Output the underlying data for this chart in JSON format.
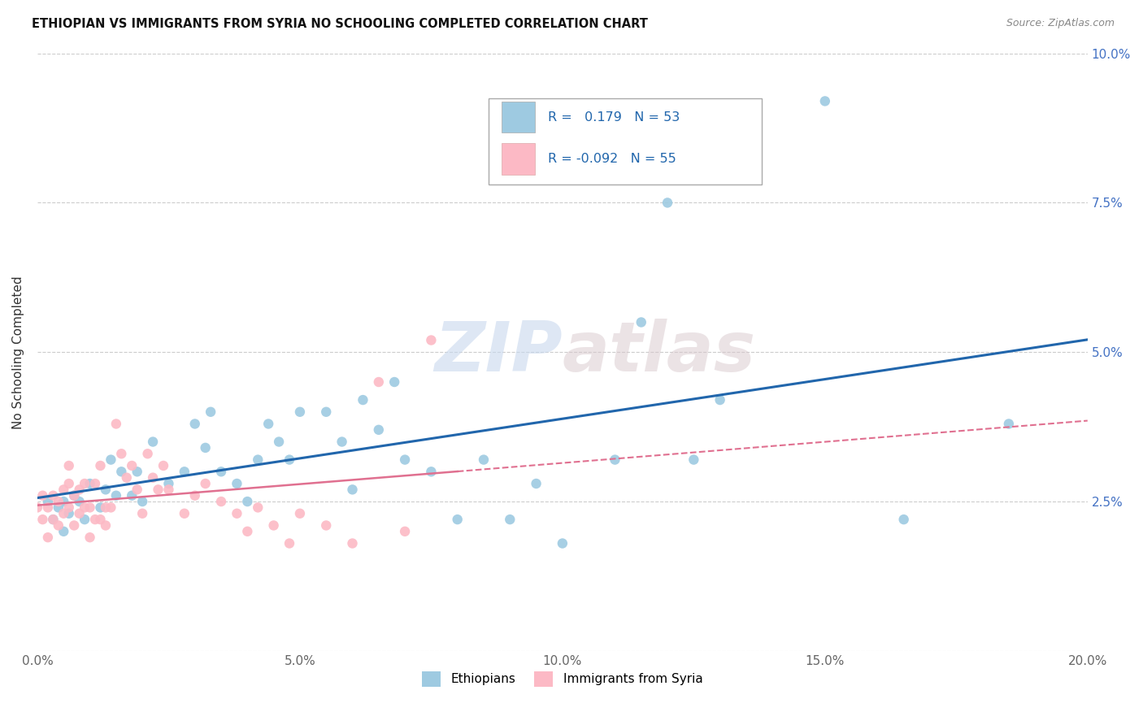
{
  "title": "ETHIOPIAN VS IMMIGRANTS FROM SYRIA NO SCHOOLING COMPLETED CORRELATION CHART",
  "source": "Source: ZipAtlas.com",
  "ylabel": "No Schooling Completed",
  "xlim": [
    0.0,
    0.2
  ],
  "ylim": [
    0.0,
    0.1
  ],
  "xticks": [
    0.0,
    0.05,
    0.1,
    0.15,
    0.2
  ],
  "yticks": [
    0.0,
    0.025,
    0.05,
    0.075,
    0.1
  ],
  "xtick_labels": [
    "0.0%",
    "5.0%",
    "10.0%",
    "15.0%",
    "20.0%"
  ],
  "ytick_labels_right": [
    "",
    "2.5%",
    "5.0%",
    "7.5%",
    "10.0%"
  ],
  "color_ethiopian": "#9ecae1",
  "color_syria": "#fcb9c5",
  "color_line_ethiopian": "#2166ac",
  "color_line_syria": "#e07090",
  "watermark_zip": "ZIP",
  "watermark_atlas": "atlas",
  "ethiopian_x": [
    0.002,
    0.003,
    0.004,
    0.005,
    0.005,
    0.006,
    0.007,
    0.008,
    0.009,
    0.01,
    0.012,
    0.013,
    0.014,
    0.015,
    0.016,
    0.018,
    0.019,
    0.02,
    0.022,
    0.025,
    0.028,
    0.03,
    0.032,
    0.033,
    0.035,
    0.038,
    0.04,
    0.042,
    0.044,
    0.046,
    0.048,
    0.05,
    0.055,
    0.058,
    0.06,
    0.062,
    0.065,
    0.068,
    0.07,
    0.075,
    0.08,
    0.085,
    0.09,
    0.095,
    0.1,
    0.11,
    0.115,
    0.12,
    0.125,
    0.13,
    0.15,
    0.165,
    0.185
  ],
  "ethiopian_y": [
    0.025,
    0.022,
    0.024,
    0.02,
    0.025,
    0.023,
    0.026,
    0.025,
    0.022,
    0.028,
    0.024,
    0.027,
    0.032,
    0.026,
    0.03,
    0.026,
    0.03,
    0.025,
    0.035,
    0.028,
    0.03,
    0.038,
    0.034,
    0.04,
    0.03,
    0.028,
    0.025,
    0.032,
    0.038,
    0.035,
    0.032,
    0.04,
    0.04,
    0.035,
    0.027,
    0.042,
    0.037,
    0.045,
    0.032,
    0.03,
    0.022,
    0.032,
    0.022,
    0.028,
    0.018,
    0.032,
    0.055,
    0.075,
    0.032,
    0.042,
    0.092,
    0.022,
    0.038
  ],
  "syria_x": [
    0.0,
    0.001,
    0.001,
    0.002,
    0.002,
    0.003,
    0.003,
    0.004,
    0.004,
    0.005,
    0.005,
    0.006,
    0.006,
    0.006,
    0.007,
    0.007,
    0.008,
    0.008,
    0.009,
    0.009,
    0.01,
    0.01,
    0.011,
    0.011,
    0.012,
    0.012,
    0.013,
    0.013,
    0.014,
    0.015,
    0.016,
    0.017,
    0.018,
    0.019,
    0.02,
    0.021,
    0.022,
    0.023,
    0.024,
    0.025,
    0.028,
    0.03,
    0.032,
    0.035,
    0.038,
    0.04,
    0.042,
    0.045,
    0.048,
    0.05,
    0.055,
    0.06,
    0.065,
    0.07,
    0.075
  ],
  "syria_y": [
    0.024,
    0.022,
    0.026,
    0.019,
    0.024,
    0.022,
    0.026,
    0.021,
    0.025,
    0.023,
    0.027,
    0.024,
    0.028,
    0.031,
    0.021,
    0.026,
    0.023,
    0.027,
    0.024,
    0.028,
    0.019,
    0.024,
    0.022,
    0.028,
    0.022,
    0.031,
    0.021,
    0.024,
    0.024,
    0.038,
    0.033,
    0.029,
    0.031,
    0.027,
    0.023,
    0.033,
    0.029,
    0.027,
    0.031,
    0.027,
    0.023,
    0.026,
    0.028,
    0.025,
    0.023,
    0.02,
    0.024,
    0.021,
    0.018,
    0.023,
    0.021,
    0.018,
    0.045,
    0.02,
    0.052
  ]
}
